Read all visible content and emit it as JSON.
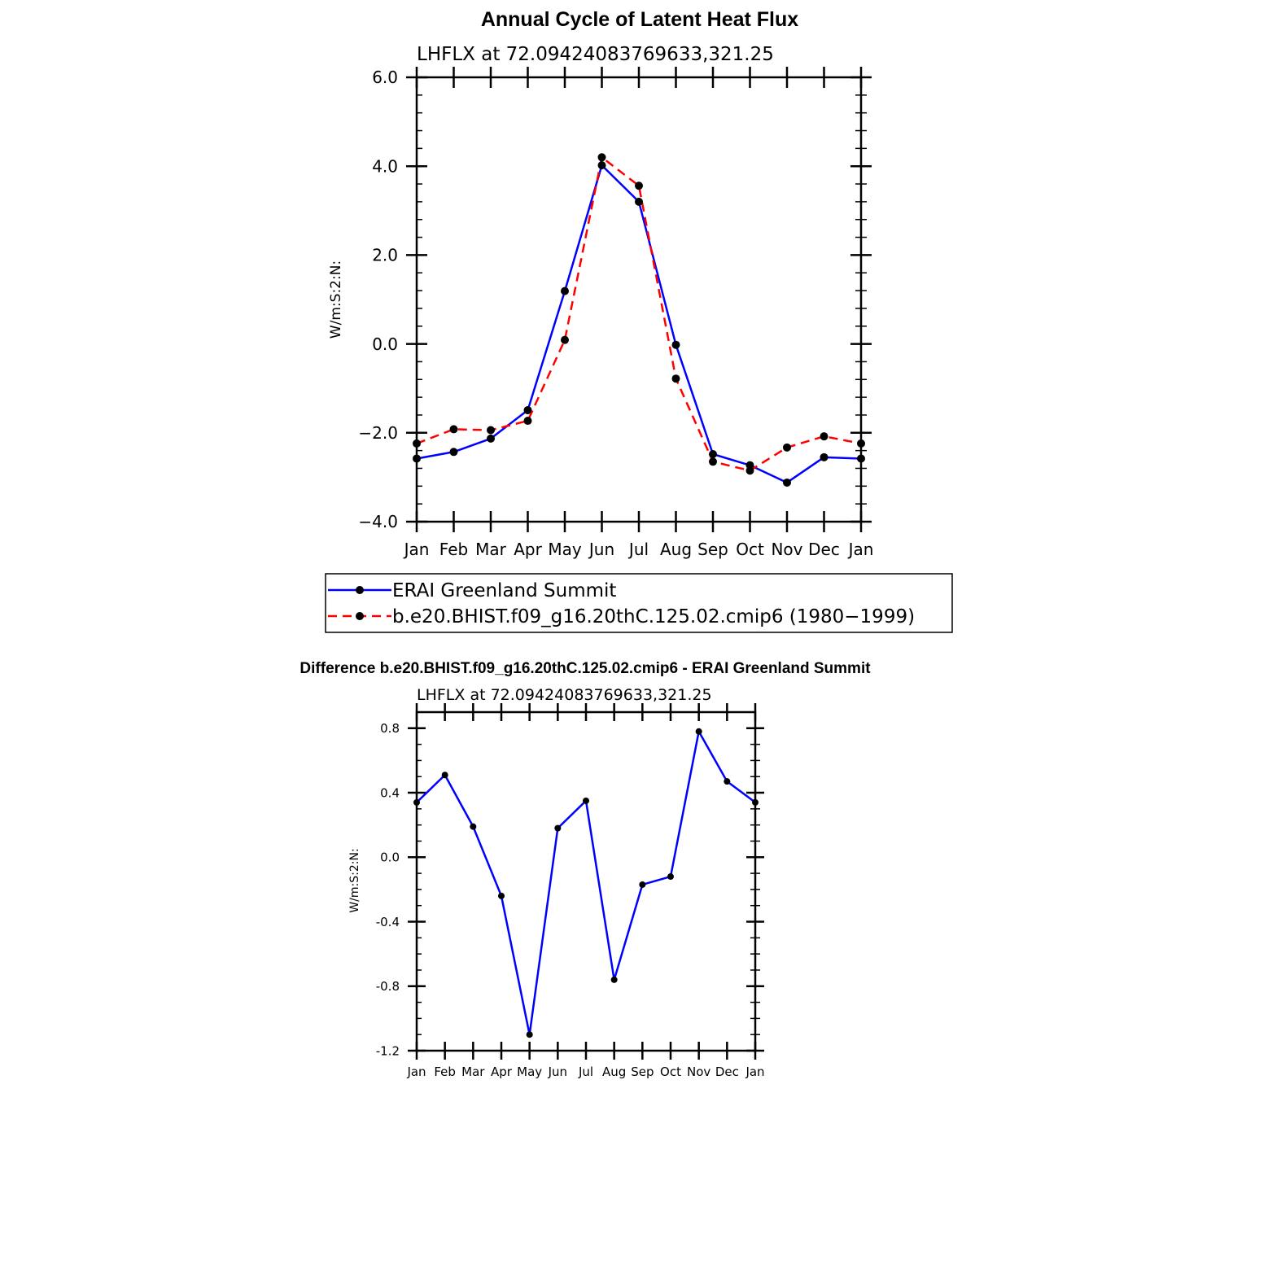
{
  "chart_data": [
    {
      "type": "line",
      "title": "Annual Cycle of Latent Heat Flux",
      "subtitle": "LHFLX at 72.09424083769633,321.25",
      "xlabel": "",
      "ylabel": "W/m:S:2:N:",
      "categories": [
        "Jan",
        "Feb",
        "Mar",
        "Apr",
        "May",
        "Jun",
        "Jul",
        "Aug",
        "Sep",
        "Oct",
        "Nov",
        "Dec",
        "Jan"
      ],
      "ylim": [
        -4.0,
        6.0
      ],
      "yticks": [
        "6.0",
        "4.0",
        "2.0",
        "0.0",
        "−2.0",
        "−4.0"
      ],
      "series": [
        {
          "name": "ERAI Greenland Summit",
          "color": "#0000ff",
          "style": "solid",
          "values": [
            -2.58,
            -2.43,
            -2.13,
            -1.49,
            1.19,
            4.02,
            3.2,
            -0.02,
            -2.48,
            -2.73,
            -3.12,
            -2.55,
            -2.58
          ]
        },
        {
          "name": "b.e20.BHIST.f09_g16.20thC.125.02.cmip6 (1980−1999)",
          "color": "#ff0000",
          "style": "dashed",
          "values": [
            -2.24,
            -1.92,
            -1.94,
            -1.73,
            0.09,
            4.2,
            3.56,
            -0.78,
            -2.65,
            -2.85,
            -2.33,
            -2.08,
            -2.24
          ]
        }
      ],
      "legend": "bottom"
    },
    {
      "type": "line",
      "title": "Difference b.e20.BHIST.f09_g16.20thC.125.02.cmip6 - ERAI Greenland Summit",
      "subtitle": "LHFLX at 72.09424083769633,321.25",
      "xlabel": "",
      "ylabel": "W/m:S:2:N:",
      "categories": [
        "Jan",
        "Feb",
        "Mar",
        "Apr",
        "May",
        "Jun",
        "Jul",
        "Aug",
        "Sep",
        "Oct",
        "Nov",
        "Dec",
        "Jan"
      ],
      "ylim": [
        -1.2,
        0.9
      ],
      "yticks": [
        "0.8",
        "0.4",
        "0.0",
        "-0.4",
        "-0.8",
        "-1.2"
      ],
      "series": [
        {
          "name": "Difference",
          "color": "#0000ff",
          "style": "solid",
          "values": [
            0.34,
            0.51,
            0.19,
            -0.24,
            -1.1,
            0.18,
            0.35,
            -0.76,
            -0.17,
            -0.12,
            0.78,
            0.47,
            0.34
          ]
        }
      ]
    }
  ]
}
